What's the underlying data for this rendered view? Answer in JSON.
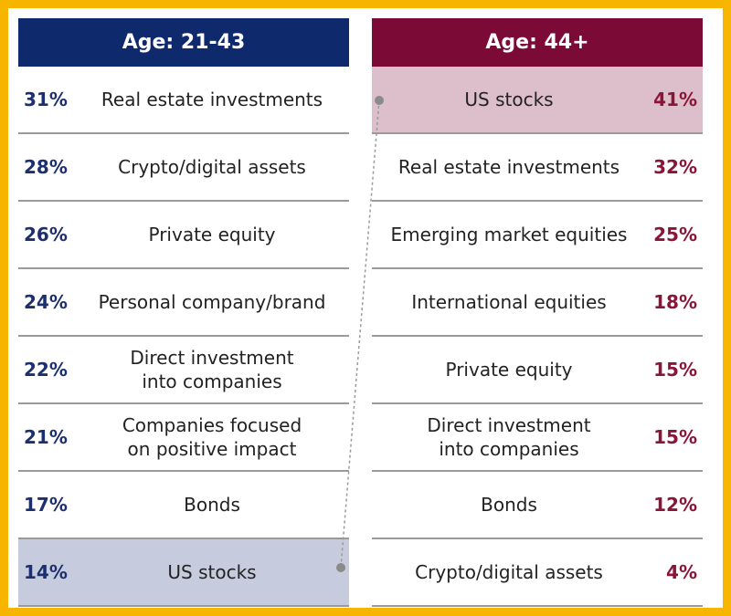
{
  "left": {
    "title": "Age: 21-43",
    "rows": [
      {
        "pct": "31%",
        "label": [
          "Real estate investments"
        ]
      },
      {
        "pct": "28%",
        "label": [
          "Crypto/digital assets"
        ]
      },
      {
        "pct": "26%",
        "label": [
          "Private equity"
        ]
      },
      {
        "pct": "24%",
        "label": [
          "Personal company/brand"
        ]
      },
      {
        "pct": "22%",
        "label": [
          "Direct investment",
          "into companies"
        ]
      },
      {
        "pct": "21%",
        "label": [
          "Companies focused",
          "on positive impact"
        ]
      },
      {
        "pct": "17%",
        "label": [
          "Bonds"
        ]
      },
      {
        "pct": "14%",
        "label": [
          "US stocks"
        ]
      }
    ]
  },
  "right": {
    "title": "Age: 44+",
    "rows": [
      {
        "pct": "41%",
        "label": [
          "US stocks"
        ]
      },
      {
        "pct": "32%",
        "label": [
          "Real estate investments"
        ]
      },
      {
        "pct": "25%",
        "label": [
          "Emerging market equities"
        ]
      },
      {
        "pct": "18%",
        "label": [
          "International equities"
        ]
      },
      {
        "pct": "15%",
        "label": [
          "Private equity"
        ]
      },
      {
        "pct": "15%",
        "label": [
          "Direct investment",
          "into companies"
        ]
      },
      {
        "pct": "12%",
        "label": [
          "Bonds"
        ]
      },
      {
        "pct": "4%",
        "label": [
          "Crypto/digital assets"
        ]
      }
    ]
  }
}
